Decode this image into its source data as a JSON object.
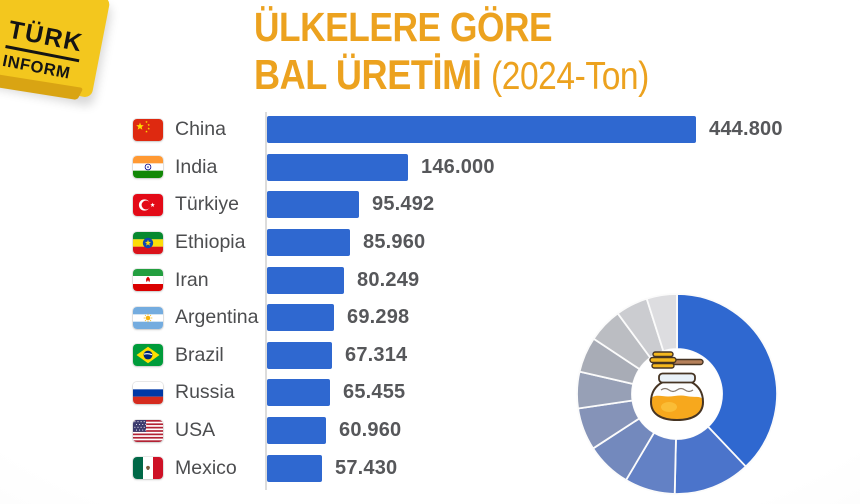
{
  "brand": {
    "line1": "TÜRK",
    "line2": "INFORM"
  },
  "title": {
    "line1": "ÜLKELERE GÖRE",
    "line2_bold": "BAL ÜRETİMİ",
    "line2_suffix": "(2024-Ton)"
  },
  "colors": {
    "title_orange": "#ECA21F",
    "bar_blue": "#2F68D0",
    "label_gray": "#4C4D4F",
    "value_gray": "#56575A",
    "axis_gray": "#DCDCDC",
    "badge_yellow": "#F3C71E",
    "donut_palette": [
      "#2F68D0",
      "#4B74CB",
      "#6381C5",
      "#7389BD",
      "#8593B8",
      "#97A0B6",
      "#A8ACB6",
      "#BBBDC2",
      "#CBCCD0",
      "#DDDDE0"
    ]
  },
  "chart_data": [
    {
      "type": "bar",
      "orientation": "horizontal",
      "title": "ÜLKELERE GÖRE BAL ÜRETİMİ (2024-Ton)",
      "unit": "Ton",
      "year": "2024",
      "categories": [
        "China",
        "India",
        "Türkiye",
        "Ethiopia",
        "Iran",
        "Argentina",
        "Brazil",
        "Russia",
        "USA",
        "Mexico"
      ],
      "values": [
        444800,
        146000,
        95492,
        85960,
        80249,
        69298,
        67314,
        65455,
        60960,
        57430
      ],
      "value_labels": [
        "444.800",
        "146.000",
        "95.492",
        "85.960",
        "80.249",
        "69.298",
        "67.314",
        "65.455",
        "60.960",
        "57.430"
      ],
      "xlim": [
        0,
        444800
      ],
      "grid": false,
      "legend": "none",
      "flag_codes": [
        "cn",
        "in",
        "tr",
        "et",
        "ir",
        "ar",
        "br",
        "ru",
        "us",
        "mx"
      ]
    },
    {
      "type": "pie",
      "donut": true,
      "inner_radius_ratio": 0.45,
      "start_angle_deg": 0,
      "direction": "clockwise",
      "categories": [
        "China",
        "India",
        "Türkiye",
        "Ethiopia",
        "Iran",
        "Argentina",
        "Brazil",
        "Russia",
        "USA",
        "Mexico"
      ],
      "values": [
        444800,
        146000,
        95492,
        85960,
        80249,
        69298,
        67314,
        65455,
        60960,
        57430
      ],
      "center_icon": "honey-jar-icon",
      "legend": "none"
    }
  ]
}
